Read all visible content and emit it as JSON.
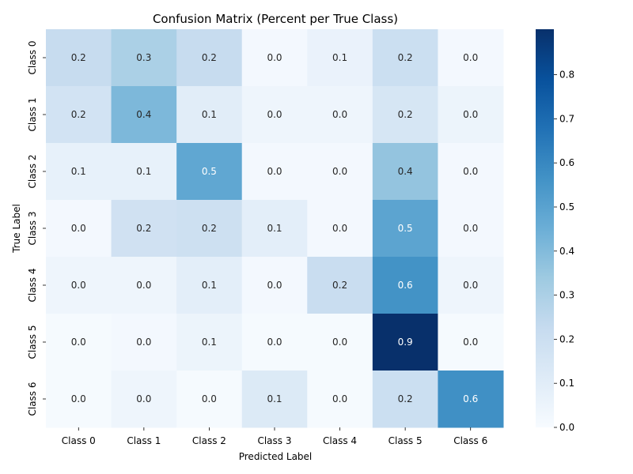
{
  "chart_data": {
    "type": "heatmap",
    "title": "Confusion Matrix (Percent per True Class)",
    "xlabel": "Predicted Label",
    "ylabel": "True Label",
    "x_categories": [
      "Class 0",
      "Class 1",
      "Class 2",
      "Class 3",
      "Class 4",
      "Class 5",
      "Class 6"
    ],
    "y_categories": [
      "Class 0",
      "Class 1",
      "Class 2",
      "Class 3",
      "Class 4",
      "Class 5",
      "Class 6"
    ],
    "values": [
      [
        0.22,
        0.3,
        0.22,
        0.02,
        0.06,
        0.2,
        0.02
      ],
      [
        0.17,
        0.41,
        0.1,
        0.04,
        0.04,
        0.15,
        0.05
      ],
      [
        0.07,
        0.07,
        0.48,
        0.02,
        0.02,
        0.36,
        0.02
      ],
      [
        0.02,
        0.18,
        0.19,
        0.09,
        0.02,
        0.49,
        0.02
      ],
      [
        0.04,
        0.04,
        0.09,
        0.02,
        0.21,
        0.56,
        0.04
      ],
      [
        0.01,
        0.02,
        0.05,
        0.01,
        0.01,
        0.9,
        0.01
      ],
      [
        0.01,
        0.04,
        0.01,
        0.12,
        0.01,
        0.2,
        0.57
      ]
    ],
    "annotations": [
      [
        "0.2",
        "0.3",
        "0.2",
        "0.0",
        "0.1",
        "0.2",
        "0.0"
      ],
      [
        "0.2",
        "0.4",
        "0.1",
        "0.0",
        "0.0",
        "0.2",
        "0.0"
      ],
      [
        "0.1",
        "0.1",
        "0.5",
        "0.0",
        "0.0",
        "0.4",
        "0.0"
      ],
      [
        "0.0",
        "0.2",
        "0.2",
        "0.1",
        "0.0",
        "0.5",
        "0.0"
      ],
      [
        "0.0",
        "0.0",
        "0.1",
        "0.0",
        "0.2",
        "0.6",
        "0.0"
      ],
      [
        "0.0",
        "0.0",
        "0.1",
        "0.0",
        "0.0",
        "0.9",
        "0.0"
      ],
      [
        "0.0",
        "0.0",
        "0.0",
        "0.1",
        "0.0",
        "0.2",
        "0.6"
      ]
    ],
    "colorbar": {
      "min": 0.0,
      "max": 0.9,
      "ticks": [
        "0.0",
        "0.1",
        "0.2",
        "0.3",
        "0.4",
        "0.5",
        "0.6",
        "0.7",
        "0.8"
      ],
      "colormap": "Blues",
      "low_color": "#f7fbff",
      "high_color": "#08306b"
    }
  }
}
